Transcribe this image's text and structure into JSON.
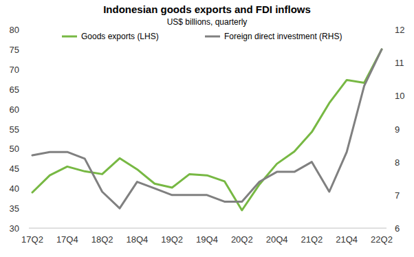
{
  "chart_data": {
    "type": "line",
    "title": "Indonesian goods exports and FDI inflows",
    "subtitle": "US$ billions, quarterly",
    "categories": [
      "17Q2",
      null,
      "17Q4",
      null,
      "18Q2",
      null,
      "18Q4",
      null,
      "19Q2",
      null,
      "19Q4",
      null,
      "20Q2",
      null,
      "20Q4",
      null,
      "21Q2",
      null,
      "21Q4",
      null,
      "22Q2"
    ],
    "series": [
      {
        "name": "Goods exports (LHS)",
        "color": "#77b843",
        "values": [
          39,
          43.3,
          45.5,
          44.3,
          43.6,
          47.6,
          44.8,
          41.2,
          40.2,
          43.6,
          43.3,
          41.8,
          34.5,
          41,
          46.2,
          49.3,
          54.2,
          61.5,
          67.3,
          66.6,
          75
        ]
      },
      {
        "name": "Foreign direct investment (RHS)",
        "color": "#808080",
        "axis": "y2",
        "values": [
          8.2,
          8.3,
          8.3,
          8.1,
          7.1,
          6.6,
          7.4,
          7.2,
          7.0,
          7.0,
          7.0,
          6.8,
          6.8,
          7.4,
          7.7,
          7.7,
          8.0,
          7.1,
          8.3,
          10.3,
          11.4
        ]
      }
    ],
    "ylim": [
      30,
      80
    ],
    "yticks": [
      30,
      35,
      40,
      45,
      50,
      55,
      60,
      65,
      70,
      75,
      80
    ],
    "y2lim": [
      6,
      12
    ],
    "y2ticks": [
      6,
      7,
      8,
      9,
      10,
      11,
      12
    ],
    "grid": false,
    "legend": "top"
  }
}
